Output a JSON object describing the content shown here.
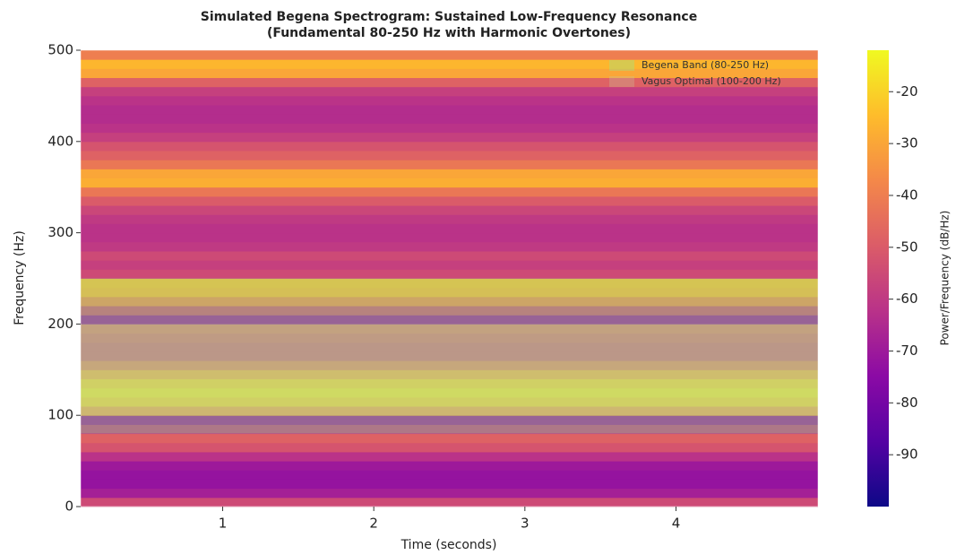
{
  "chart_data": {
    "type": "spectrogram",
    "title": "Simulated Begena Spectrogram: Sustained Low-Frequency Resonance",
    "subtitle": "(Fundamental 80-250 Hz with Harmonic Overtones)",
    "x_label": "Time (seconds)",
    "y_label": "Frequency (Hz)",
    "colorbar_label": "Power/Frequency (dB/Hz)",
    "colormap": "plasma",
    "xlim": [
      0.06,
      4.94
    ],
    "xticks": [
      1,
      2,
      3,
      4
    ],
    "ylim": [
      0,
      500
    ],
    "yticks": [
      0,
      100,
      200,
      300,
      400,
      500
    ],
    "clim": [
      -100,
      -12
    ],
    "cticks": [
      -90,
      -80,
      -70,
      -60,
      -50,
      -40,
      -30,
      -20
    ],
    "bins": [
      0,
      10,
      20,
      30,
      40,
      50,
      60,
      70,
      80,
      90,
      100,
      110,
      120,
      130,
      140,
      150,
      160,
      170,
      180,
      190,
      200,
      210,
      220,
      230,
      240,
      250,
      260,
      270,
      280,
      290,
      300,
      310,
      320,
      330,
      340,
      350,
      360,
      370,
      380,
      390,
      400,
      410,
      420,
      430,
      440,
      450,
      460,
      470,
      480,
      490,
      500
    ],
    "power": [
      -55,
      -68,
      -72,
      -72,
      -70,
      -62,
      -52,
      -48,
      -60,
      -70,
      -35,
      -22,
      -18,
      -22,
      -32,
      -45,
      -55,
      -55,
      -52,
      -48,
      -70,
      -55,
      -40,
      -30,
      -28,
      -55,
      -58,
      -55,
      -60,
      -62,
      -62,
      -60,
      -56,
      -50,
      -42,
      -28,
      -30,
      -42,
      -48,
      -52,
      -58,
      -62,
      -64,
      -64,
      -62,
      -58,
      -48,
      -30,
      -26,
      -40
    ],
    "spans": [
      {
        "name": "Begena Band (80-250 Hz)",
        "range": [
          80,
          250
        ],
        "color": "#90ee90",
        "alpha": 0.35
      },
      {
        "name": "Vagus Optimal (100-200 Hz)",
        "range": [
          100,
          200
        ],
        "color": "#c8c8a0",
        "alpha": 0.3
      }
    ],
    "legend": "upper right"
  }
}
